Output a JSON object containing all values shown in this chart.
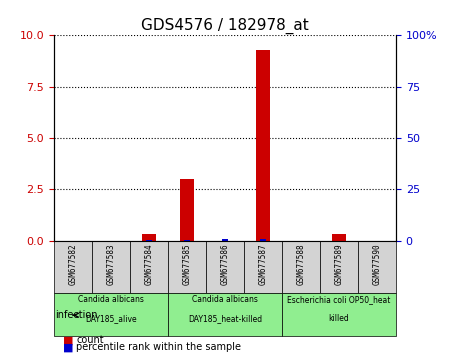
{
  "title": "GDS4576 / 182978_at",
  "samples": [
    "GSM677582",
    "GSM677583",
    "GSM677584",
    "GSM677585",
    "GSM677586",
    "GSM677587",
    "GSM677588",
    "GSM677589",
    "GSM677590"
  ],
  "counts": [
    0,
    0,
    0.3,
    3.0,
    0,
    9.3,
    0,
    0.3,
    0
  ],
  "percentiles": [
    0,
    0,
    0.5,
    0.5,
    1.0,
    1.0,
    0,
    0,
    0
  ],
  "ylim_left": [
    0,
    10
  ],
  "ylim_right": [
    0,
    100
  ],
  "yticks_left": [
    0,
    2.5,
    5,
    7.5,
    10
  ],
  "yticks_right": [
    0,
    25,
    50,
    75,
    100
  ],
  "groups": [
    {
      "label": "Candida albicans\nDAY185_alive",
      "start": 0,
      "end": 3,
      "color": "#90ee90"
    },
    {
      "label": "Candida albicans\nDAY185_heat-killed",
      "start": 3,
      "end": 6,
      "color": "#90ee90"
    },
    {
      "label": "Escherichia coli OP50_heat\nkilled",
      "start": 6,
      "end": 9,
      "color": "#90ee90"
    }
  ],
  "infection_label": "infection",
  "count_color": "#cc0000",
  "percentile_color": "#0000cc",
  "bar_bg_color": "#d3d3d3",
  "bar_width": 0.35,
  "grid_color": "#000000",
  "grid_linestyle": "dotted"
}
